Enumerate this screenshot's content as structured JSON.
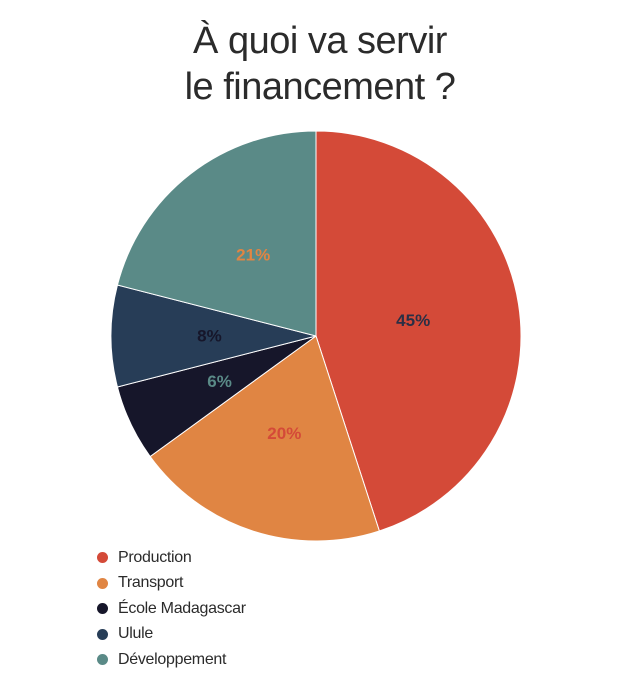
{
  "chart_data": {
    "type": "pie",
    "title_lines": [
      "À quoi va servir",
      "le financement ?"
    ],
    "slices": [
      {
        "name": "Production",
        "value": 45,
        "label": "45%",
        "color": "#d44a38",
        "label_color": "#2a2f45"
      },
      {
        "name": "Transport",
        "value": 20,
        "label": "20%",
        "color": "#e08543",
        "label_color": "#d44a38"
      },
      {
        "name": "École Madagascar",
        "value": 6,
        "label": "6%",
        "color": "#16162a",
        "label_color": "#5a8a87"
      },
      {
        "name": "Ulule",
        "value": 8,
        "label": "8%",
        "color": "#273d57",
        "label_color": "#16162a"
      },
      {
        "name": "Développement",
        "value": 21,
        "label": "21%",
        "color": "#5a8a87",
        "label_color": "#e08543"
      }
    ],
    "legend_position": "bottom-left"
  }
}
